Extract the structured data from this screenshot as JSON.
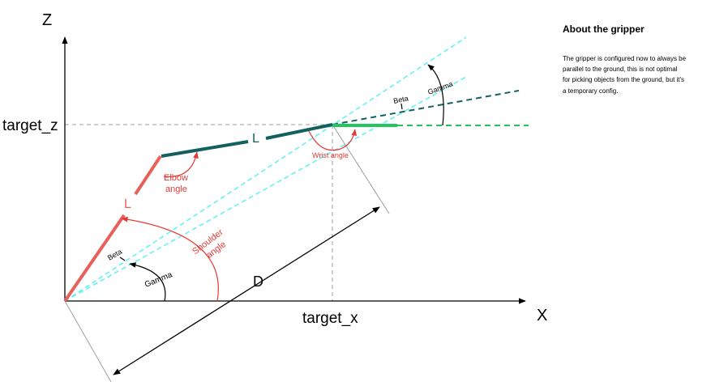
{
  "axes": {
    "z_label": "Z",
    "x_label": "X",
    "target_z": "target_z",
    "target_x": "target_x"
  },
  "segments": {
    "lower_link_label": "L",
    "upper_link_label": "L",
    "distance_label": "D"
  },
  "angles": {
    "shoulder": [
      "Shoulder",
      "angle"
    ],
    "elbow": [
      "Elbow",
      "angle"
    ],
    "wrist": "Wrist angle",
    "beta_lower": "Beta",
    "gamma_lower": "Gamma",
    "beta_upper": "Beta",
    "gamma_upper": "Gamma"
  },
  "sidebar": {
    "title": "About the gripper",
    "lines": [
      "The gripper is configured now to always be",
      "parallel to the ground, this is not optimal",
      "for picking objects from the ground, but it's",
      "a temporary config."
    ]
  },
  "colors": {
    "lower_link": "#e8605a",
    "upper_link": "#13615f",
    "gripper": "#22c55e",
    "guide_cyan": "#5cf2f5",
    "label_red": "#e53935",
    "reference_grey": "#bdbdbd"
  }
}
